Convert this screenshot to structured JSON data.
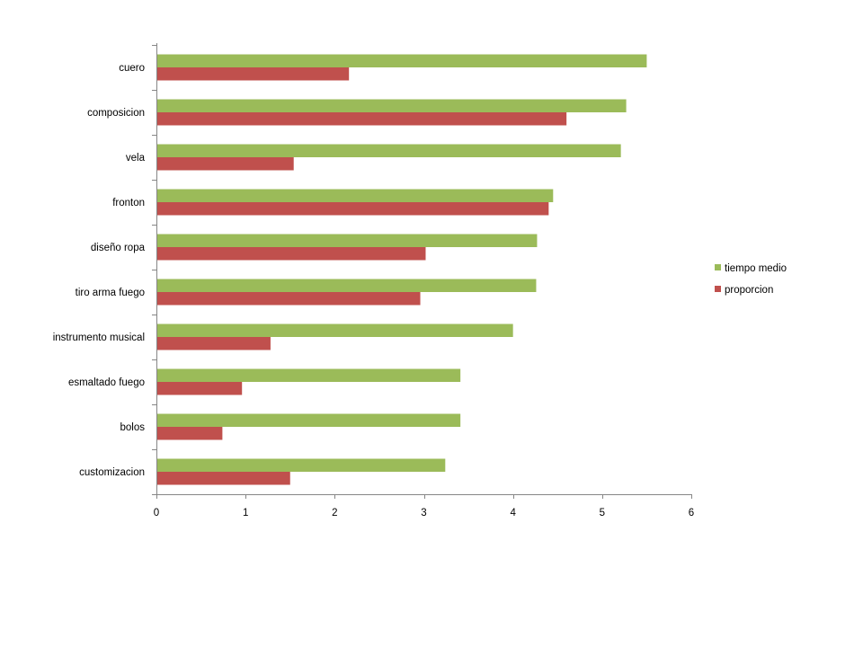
{
  "chart_data": {
    "type": "bar",
    "orientation": "horizontal",
    "categories": [
      "cuero",
      "composicion",
      "vela",
      "fronton",
      "diseño ropa",
      "tiro arma fuego",
      "instrumento musical",
      "esmaltado fuego",
      "bolos",
      "customizacion"
    ],
    "series": [
      {
        "name": "tiempo medio",
        "color": "#9bbb59",
        "values": [
          5.5,
          5.27,
          5.21,
          4.45,
          4.27,
          4.26,
          4.0,
          3.41,
          3.41,
          3.24
        ]
      },
      {
        "name": "proporcion",
        "color": "#c0504d",
        "values": [
          2.16,
          4.6,
          1.54,
          4.4,
          3.02,
          2.96,
          1.28,
          0.96,
          0.74,
          1.5
        ]
      }
    ],
    "xlim": [
      0,
      6
    ],
    "xticks": [
      "0",
      "1",
      "2",
      "3",
      "4",
      "5",
      "6"
    ],
    "grid": false,
    "legend_position": "right",
    "title": "",
    "xlabel": "",
    "ylabel": ""
  }
}
